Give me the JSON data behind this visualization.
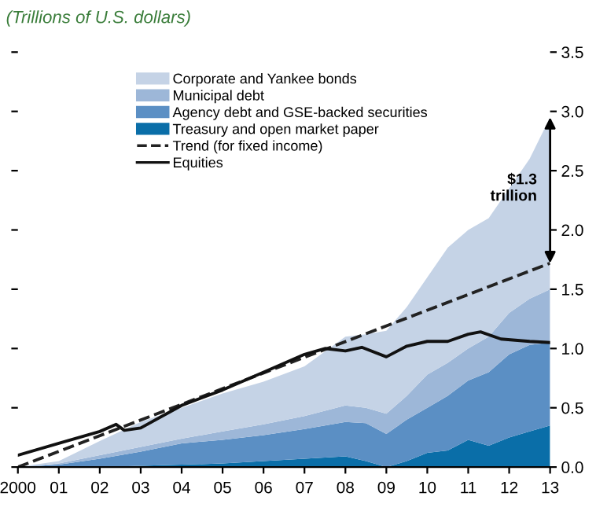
{
  "chart_data": {
    "type": "area",
    "stacked": true,
    "title": "(Trillions of U.S. dollars)",
    "x": [
      2000,
      2001,
      2002,
      2003,
      2004,
      2005,
      2006,
      2007,
      2008,
      2008.5,
      2009,
      2009.5,
      2010,
      2010.5,
      2011,
      2011.5,
      2012,
      2012.5,
      2013
    ],
    "series": [
      {
        "name": "Treasury and open market paper",
        "color": "#0a6ea8",
        "values": [
          0,
          0,
          0,
          0.01,
          0.02,
          0.03,
          0.05,
          0.07,
          0.09,
          0.05,
          0,
          0.05,
          0.12,
          0.14,
          0.23,
          0.18,
          0.25,
          0.3,
          0.35
        ]
      },
      {
        "name": "Agency debt and GSE-backed securities",
        "color": "#5b8fc4",
        "values": [
          0,
          0.02,
          0.07,
          0.12,
          0.18,
          0.2,
          0.22,
          0.25,
          0.29,
          0.32,
          0.28,
          0.35,
          0.38,
          0.46,
          0.5,
          0.62,
          0.7,
          0.73,
          0.7
        ]
      },
      {
        "name": "Municipal debt",
        "color": "#9db7d8",
        "values": [
          0,
          0.01,
          0.03,
          0.04,
          0.04,
          0.07,
          0.09,
          0.11,
          0.14,
          0.13,
          0.17,
          0.2,
          0.28,
          0.28,
          0.27,
          0.3,
          0.35,
          0.39,
          0.45
        ]
      },
      {
        "name": "Corporate and Yankee bonds",
        "color": "#c5d3e6",
        "values": [
          0,
          0.02,
          0.12,
          0.21,
          0.26,
          0.32,
          0.36,
          0.42,
          0.58,
          0.62,
          0.7,
          0.75,
          0.82,
          0.97,
          1.0,
          1.0,
          1.05,
          1.18,
          1.45
        ]
      },
      {
        "name": "Trend (for fixed income)",
        "type": "line",
        "line_style": "dashed",
        "color": "#222222",
        "x": [
          2000,
          2013
        ],
        "values": [
          0,
          1.72
        ]
      },
      {
        "name": "Equities",
        "type": "line",
        "line_style": "solid",
        "color": "#111111",
        "x": [
          2000,
          2001,
          2002,
          2002.4,
          2002.6,
          2003,
          2004,
          2005,
          2006,
          2007,
          2007.5,
          2008,
          2008.4,
          2009,
          2009.5,
          2010,
          2010.5,
          2011,
          2011.3,
          2011.8,
          2012.5,
          2013
        ],
        "values": [
          0.1,
          0.2,
          0.3,
          0.36,
          0.31,
          0.33,
          0.52,
          0.65,
          0.8,
          0.95,
          1.0,
          0.98,
          1.01,
          0.93,
          1.02,
          1.06,
          1.06,
          1.12,
          1.14,
          1.08,
          1.06,
          1.05
        ]
      }
    ],
    "xlim": [
      2000,
      2013
    ],
    "xticks": [
      {
        "value": 2000,
        "label": "2000"
      },
      {
        "value": 2001,
        "label": "01"
      },
      {
        "value": 2002,
        "label": "02"
      },
      {
        "value": 2003,
        "label": "03"
      },
      {
        "value": 2004,
        "label": "04"
      },
      {
        "value": 2005,
        "label": "05"
      },
      {
        "value": 2006,
        "label": "06"
      },
      {
        "value": 2007,
        "label": "07"
      },
      {
        "value": 2008,
        "label": "08"
      },
      {
        "value": 2009,
        "label": "09"
      },
      {
        "value": 2010,
        "label": "10"
      },
      {
        "value": 2011,
        "label": "11"
      },
      {
        "value": 2012,
        "label": "12"
      },
      {
        "value": 2013,
        "label": "13"
      }
    ],
    "ylim": [
      0,
      3.5
    ],
    "yticks": [
      {
        "value": 0,
        "label": "0.0"
      },
      {
        "value": 0.5,
        "label": "0.5"
      },
      {
        "value": 1,
        "label": "1.0"
      },
      {
        "value": 1.5,
        "label": "1.5"
      },
      {
        "value": 2,
        "label": "2.0"
      },
      {
        "value": 2.5,
        "label": "2.5"
      },
      {
        "value": 3,
        "label": "3.0"
      },
      {
        "value": 3.5,
        "label": "3.5"
      }
    ],
    "annotations": [
      {
        "text": "$1.3\ntrillion",
        "x": 2013,
        "y": 2.35
      }
    ],
    "legend": "top left",
    "grid": false
  }
}
